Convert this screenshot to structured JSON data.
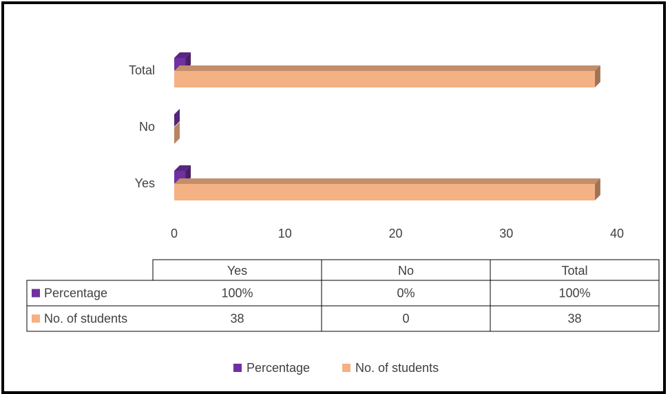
{
  "chart_data": {
    "type": "bar",
    "orientation": "horizontal",
    "style": "3d",
    "categories": [
      "Yes",
      "No",
      "Total"
    ],
    "series": [
      {
        "name": "Percentage",
        "color": "#7030A0",
        "values": [
          1,
          0,
          1
        ],
        "labels": [
          "100%",
          "0%",
          "100%"
        ]
      },
      {
        "name": "No. of students",
        "color": "#F4B183",
        "values": [
          38,
          0,
          38
        ],
        "labels": [
          "38",
          "0",
          "38"
        ]
      }
    ],
    "xlim": [
      0,
      40
    ],
    "xticks": [
      "0",
      "10",
      "20",
      "30",
      "40"
    ],
    "grid": false,
    "data_table": true,
    "legend": "bottom"
  }
}
